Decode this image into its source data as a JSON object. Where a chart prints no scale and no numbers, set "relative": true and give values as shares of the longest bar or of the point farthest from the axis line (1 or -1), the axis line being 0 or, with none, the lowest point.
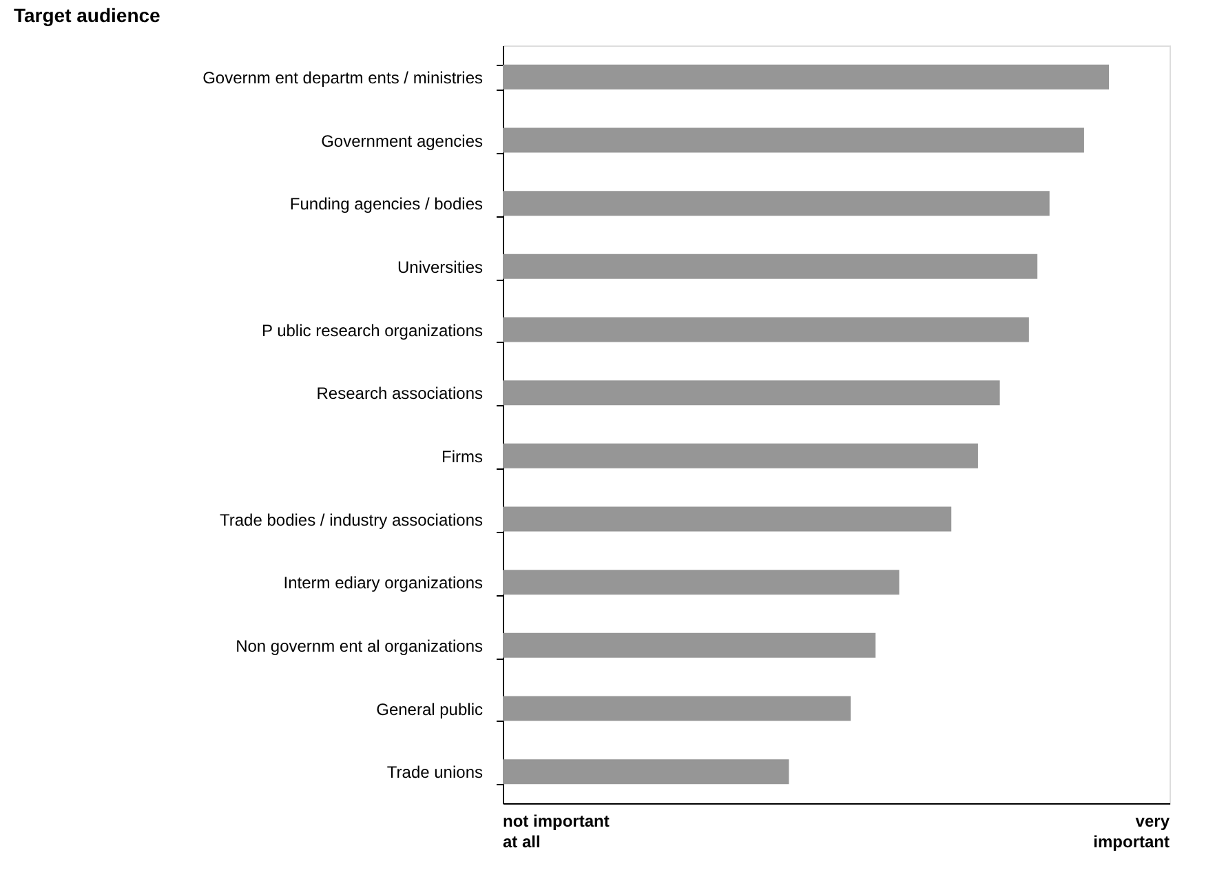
{
  "chart_data": {
    "type": "bar",
    "orientation": "horizontal",
    "relative": true,
    "title": "Target audience",
    "categories": [
      "Governm ent departm ents / ministries",
      "Government agencies",
      "Funding agencies / bodies",
      "Universities",
      "P ublic research organizations",
      "Research associations",
      "Firms",
      "Trade bodies / industry associations",
      "Interm ediary organizations",
      "Non governm ent al organizations",
      "General public",
      "Trade unions"
    ],
    "values": [
      1,
      0.959,
      0.902,
      0.882,
      0.868,
      0.82,
      0.784,
      0.74,
      0.654,
      0.615,
      0.574,
      0.472
    ],
    "color": "#969696",
    "grid": false,
    "annotations": [
      "not important at all",
      "very important"
    ]
  }
}
